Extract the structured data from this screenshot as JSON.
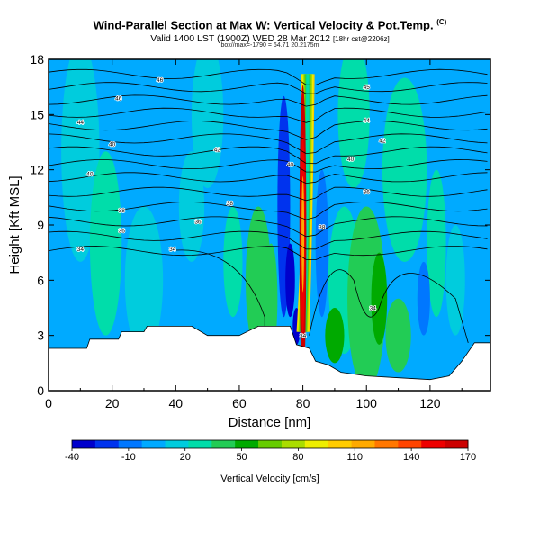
{
  "header": {
    "title": "Wind-Parallel Section at Max W: Vertical Velocity & Pot.Temp.",
    "title_mark": "(C)",
    "subtitle_main": "Valid 1400 LST (1900Z) WED 28 Mar 2012",
    "subtitle_small": "[18hr cst@2206z]",
    "subtitle2": "box//max=-1790 = 64.71 20.2175m"
  },
  "chart_data": {
    "type": "heatmap",
    "xlabel": "Distance [nm]",
    "ylabel": "Height [Kft MSL]",
    "xlim": [
      0,
      139
    ],
    "ylim": [
      0,
      18
    ],
    "xticks": [
      "0",
      "20",
      "40",
      "60",
      "80",
      "100",
      "120"
    ],
    "yticks": [
      "0",
      "3",
      "6",
      "9",
      "12",
      "15",
      "18"
    ],
    "colorbar": {
      "label": "Vertical Velocity [cm/s]",
      "ticks": [
        "-40",
        "-10",
        "20",
        "50",
        "80",
        "110",
        "140",
        "170"
      ],
      "range": [
        -40,
        170
      ],
      "colors": [
        "#0000cc",
        "#0033ee",
        "#0077ff",
        "#00aaff",
        "#00ccdd",
        "#00ddaa",
        "#22cc55",
        "#00aa00",
        "#66cc00",
        "#aadd00",
        "#eeee00",
        "#ffcc00",
        "#ffaa00",
        "#ff7700",
        "#ff4400",
        "#ee0000",
        "#cc0000"
      ]
    },
    "theta_contour_labels": [
      "46",
      "45",
      "46",
      "44",
      "44",
      "42",
      "40",
      "42",
      "40",
      "40",
      "40",
      "38",
      "38",
      "36",
      "38",
      "36",
      "36",
      "34",
      "34",
      "34",
      "34"
    ],
    "max_updraft": {
      "x_nm": 80,
      "y_kft_range": [
        3,
        17
      ],
      "peak_cm_s": 170
    },
    "terrain": [
      {
        "x": 0,
        "y": 2.3
      },
      {
        "x": 12,
        "y": 2.3
      },
      {
        "x": 13,
        "y": 2.8
      },
      {
        "x": 22,
        "y": 2.8
      },
      {
        "x": 23,
        "y": 3.2
      },
      {
        "x": 30,
        "y": 3.2
      },
      {
        "x": 31,
        "y": 3.5
      },
      {
        "x": 45,
        "y": 3.5
      },
      {
        "x": 50,
        "y": 3.0
      },
      {
        "x": 60,
        "y": 3.0
      },
      {
        "x": 66,
        "y": 3.5
      },
      {
        "x": 76,
        "y": 3.5
      },
      {
        "x": 78,
        "y": 2.5
      },
      {
        "x": 82,
        "y": 2.3
      },
      {
        "x": 84,
        "y": 1.6
      },
      {
        "x": 88,
        "y": 1.4
      },
      {
        "x": 92,
        "y": 1.0
      },
      {
        "x": 100,
        "y": 0.8
      },
      {
        "x": 110,
        "y": 0.7
      },
      {
        "x": 120,
        "y": 0.6
      },
      {
        "x": 126,
        "y": 0.8
      },
      {
        "x": 130,
        "y": 1.6
      },
      {
        "x": 134,
        "y": 2.6
      },
      {
        "x": 139,
        "y": 2.6
      }
    ]
  }
}
